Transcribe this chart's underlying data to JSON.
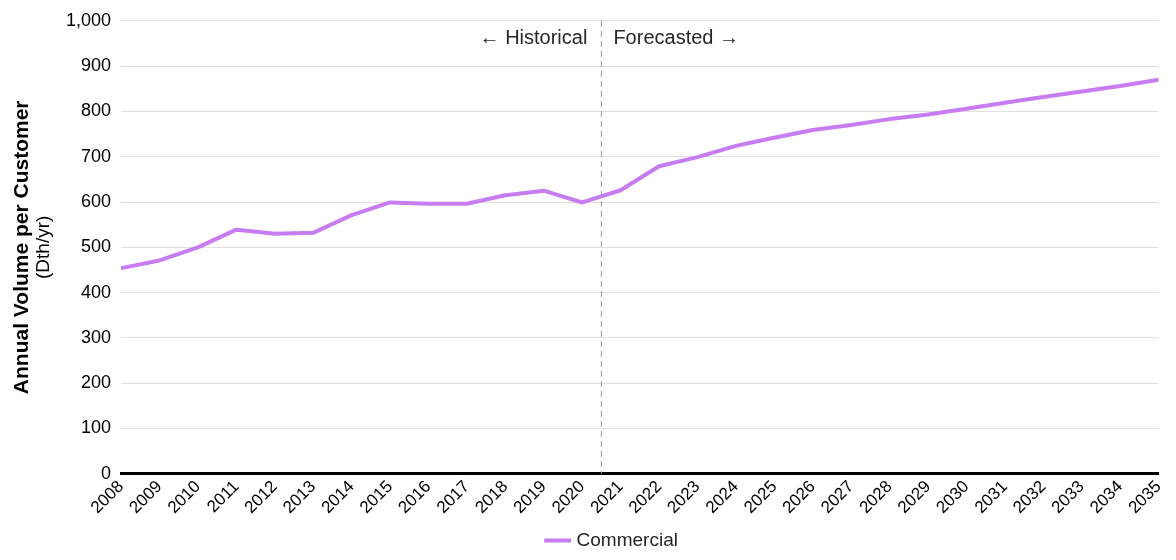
{
  "chart_data": {
    "type": "line",
    "ylabel": "Annual Volume per Customer\n(Dth/yr)",
    "x": [
      2008,
      2009,
      2010,
      2011,
      2012,
      2013,
      2014,
      2015,
      2016,
      2017,
      2018,
      2019,
      2020,
      2021,
      2022,
      2023,
      2024,
      2025,
      2026,
      2027,
      2028,
      2029,
      2030,
      2031,
      2032,
      2033,
      2034,
      2035
    ],
    "series": [
      {
        "name": "Commercial",
        "color": "#c77cf2",
        "values": [
          454,
          471,
          500,
          539,
          530,
          532,
          571,
          599,
          596,
          596,
          615,
          625,
          599,
          626,
          679,
          699,
          724,
          742,
          759,
          770,
          783,
          793,
          806,
          819,
          832,
          844,
          856,
          870
        ]
      }
    ],
    "xlim": [
      2008,
      2035
    ],
    "xticks": [
      2008,
      2009,
      2010,
      2011,
      2012,
      2013,
      2014,
      2015,
      2016,
      2017,
      2018,
      2019,
      2020,
      2021,
      2022,
      2023,
      2024,
      2025,
      2026,
      2027,
      2028,
      2029,
      2030,
      2031,
      2032,
      2033,
      2034,
      2035
    ],
    "ylim": [
      0,
      1000
    ],
    "yticks": [
      0,
      100,
      200,
      300,
      400,
      500,
      600,
      700,
      800,
      900,
      {
        "value": 1000,
        "label": "1,000"
      }
    ],
    "ref_lines": [
      {
        "axis": "x",
        "value": 2020.5,
        "color": "#999999",
        "line_style": "dashed"
      }
    ],
    "annotations": [
      {
        "text": "← Historical",
        "x": 2020.5,
        "y": 960
      },
      {
        "text": "Forecasted →",
        "x": 2020.5,
        "y": 960
      }
    ],
    "grid": "y",
    "legend": "bottom",
    "marker": "none",
    "line_style": "solid"
  }
}
